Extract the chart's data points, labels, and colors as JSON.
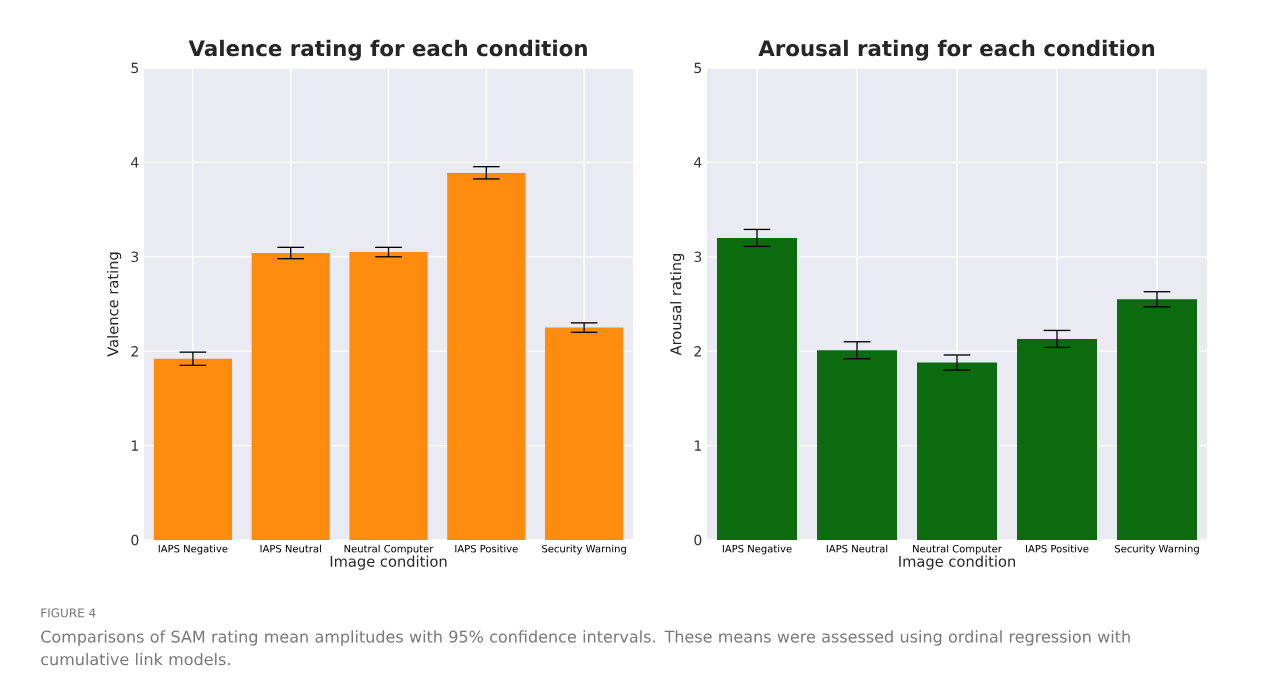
{
  "chart_data": [
    {
      "type": "bar",
      "title": "Valence rating for each condition",
      "xlabel": "Image condition",
      "ylabel": "Valence rating",
      "categories": [
        "IAPS Negative",
        "IAPS Neutral",
        "Neutral Computer",
        "IAPS Positive",
        "Security Warning"
      ],
      "values": [
        1.92,
        3.04,
        3.05,
        3.89,
        2.25
      ],
      "errors": [
        0.07,
        0.06,
        0.05,
        0.065,
        0.05
      ],
      "color": "#ff8c0f",
      "ylim": [
        0,
        5
      ],
      "yticks": [
        0,
        1,
        2,
        3,
        4,
        5
      ],
      "grid": true,
      "annotations": [
        "FIGURE 4",
        "Comparisons of SAM rating mean amplitudes with 95% confidence intervals. These means were assessed using ordinal regression with cumulative link models."
      ]
    },
    {
      "type": "bar",
      "title": "Arousal rating for each condition",
      "xlabel": "Image condition",
      "ylabel": "Arousal rating",
      "categories": [
        "IAPS Negative",
        "IAPS Neutral",
        "Neutral Computer",
        "IAPS Positive",
        "Security Warning"
      ],
      "values": [
        3.2,
        2.01,
        1.88,
        2.13,
        2.55
      ],
      "errors": [
        0.09,
        0.09,
        0.08,
        0.09,
        0.08
      ],
      "color": "#0b6b0e",
      "ylim": [
        0,
        5
      ],
      "yticks": [
        0,
        1,
        2,
        3,
        4,
        5
      ],
      "grid": true
    }
  ]
}
